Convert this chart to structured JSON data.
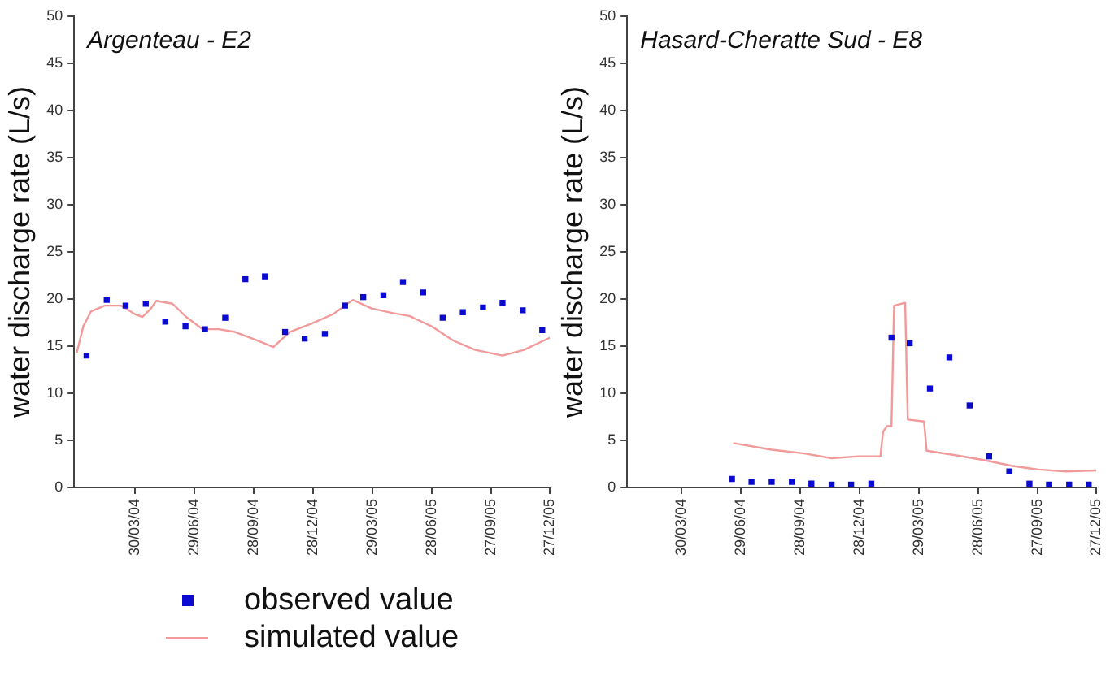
{
  "chart_data": [
    {
      "type": "line",
      "title": "Argenteau - E2",
      "ylabel": "water discharge rate (L/s)",
      "xlim": [
        "2003-12-27",
        "2005-12-27"
      ],
      "xticks": [
        {
          "value": "2004-03-30",
          "label": "30/03/04"
        },
        {
          "value": "2004-06-29",
          "label": "29/06/04"
        },
        {
          "value": "2004-09-28",
          "label": "28/09/04"
        },
        {
          "value": "2004-12-28",
          "label": "28/12/04"
        },
        {
          "value": "2005-03-29",
          "label": "29/03/05"
        },
        {
          "value": "2005-06-28",
          "label": "28/06/05"
        },
        {
          "value": "2005-09-27",
          "label": "27/09/05"
        },
        {
          "value": "2005-12-27",
          "label": "27/12/05"
        }
      ],
      "ylim": [
        0,
        50
      ],
      "yticks": [
        0,
        5,
        10,
        15,
        20,
        25,
        30,
        35,
        40,
        45,
        50
      ],
      "grid": false,
      "legend": "bottom",
      "series": [
        {
          "name": "observed value",
          "type": "scatter",
          "marker": "square",
          "color": "#0a0ad0",
          "x": [
            "2004-01-15",
            "2004-02-15",
            "2004-03-15",
            "2004-04-15",
            "2004-05-15",
            "2004-06-15",
            "2004-07-15",
            "2004-08-15",
            "2004-09-15",
            "2004-10-15",
            "2004-11-15",
            "2004-12-15",
            "2005-01-15",
            "2005-02-15",
            "2005-03-15",
            "2005-04-15",
            "2005-05-15",
            "2005-06-15",
            "2005-07-15",
            "2005-08-15",
            "2005-09-15",
            "2005-10-15",
            "2005-11-15",
            "2005-12-15"
          ],
          "values": [
            14.0,
            19.9,
            19.3,
            19.5,
            17.6,
            17.1,
            16.8,
            18.0,
            22.1,
            22.4,
            16.5,
            15.8,
            16.3,
            19.3,
            20.2,
            20.4,
            21.8,
            20.7,
            18.0,
            18.6,
            19.1,
            19.6,
            18.8,
            16.7
          ]
        },
        {
          "name": "simulated value",
          "type": "line",
          "marker": "none",
          "color": "#f29a9a",
          "x": [
            "2003-12-31",
            "2004-01-10",
            "2004-01-22",
            "2004-02-12",
            "2004-03-08",
            "2004-03-29",
            "2004-04-10",
            "2004-04-23",
            "2004-05-01",
            "2004-05-26",
            "2004-06-16",
            "2004-07-11",
            "2004-08-05",
            "2004-08-30",
            "2004-10-03",
            "2004-10-28",
            "2004-11-22",
            "2004-12-26",
            "2005-01-28",
            "2005-02-27",
            "2005-03-28",
            "2005-04-30",
            "2005-05-25",
            "2005-06-28",
            "2005-07-31",
            "2005-09-03",
            "2005-10-15",
            "2005-11-17",
            "2005-12-27"
          ],
          "values": [
            14.3,
            17.1,
            18.7,
            19.3,
            19.3,
            18.4,
            18.1,
            19.0,
            19.8,
            19.5,
            18.1,
            16.8,
            16.8,
            16.5,
            15.6,
            14.9,
            16.5,
            17.4,
            18.4,
            19.9,
            19.0,
            18.5,
            18.2,
            17.1,
            15.6,
            14.6,
            14.0,
            14.6,
            15.9
          ]
        }
      ]
    },
    {
      "type": "line",
      "title": "Hasard-Cheratte Sud - E8",
      "ylabel": "water discharge rate (L/s)",
      "xlim": [
        "2004-01-06",
        "2005-12-27"
      ],
      "xticks": [
        {
          "value": "2004-03-30",
          "label": "30/03/04"
        },
        {
          "value": "2004-06-29",
          "label": "29/06/04"
        },
        {
          "value": "2004-09-28",
          "label": "28/09/04"
        },
        {
          "value": "2004-12-28",
          "label": "28/12/04"
        },
        {
          "value": "2005-03-29",
          "label": "29/03/05"
        },
        {
          "value": "2005-06-28",
          "label": "28/06/05"
        },
        {
          "value": "2005-09-27",
          "label": "27/09/05"
        },
        {
          "value": "2005-12-27",
          "label": "27/12/05"
        }
      ],
      "ylim": [
        0,
        50
      ],
      "yticks": [
        0,
        5,
        10,
        15,
        20,
        25,
        30,
        35,
        40,
        45,
        50
      ],
      "grid": false,
      "series": [
        {
          "type": "scatter",
          "marker": "square",
          "color": "#0a0ad0",
          "x": [
            "2004-06-15",
            "2004-07-15",
            "2004-08-15",
            "2004-09-15",
            "2004-10-15",
            "2004-11-15",
            "2004-12-15",
            "2005-01-15",
            "2005-02-15",
            "2005-03-15",
            "2005-04-15",
            "2005-05-15",
            "2005-06-15",
            "2005-07-15",
            "2005-08-15",
            "2005-09-15",
            "2005-10-15",
            "2005-11-15",
            "2005-12-15"
          ],
          "values": [
            0.9,
            0.6,
            0.6,
            0.6,
            0.4,
            0.3,
            0.3,
            0.4,
            15.9,
            15.3,
            10.5,
            13.8,
            8.7,
            3.3,
            1.7,
            0.4,
            0.3,
            0.3,
            0.3
          ]
        },
        {
          "type": "line",
          "marker": "none",
          "color": "#f29a9a",
          "x": [
            "2004-06-17",
            "2004-08-15",
            "2004-10-04",
            "2004-11-15",
            "2004-12-27",
            "2005-01-29",
            "2005-02-02",
            "2005-02-08",
            "2005-02-15",
            "2005-02-19",
            "2005-03-08",
            "2005-03-12",
            "2005-04-06",
            "2005-04-10",
            "2005-05-26",
            "2005-07-07",
            "2005-08-18",
            "2005-09-29",
            "2005-11-10",
            "2005-12-27"
          ],
          "values": [
            4.7,
            4.0,
            3.6,
            3.1,
            3.3,
            3.3,
            5.9,
            6.5,
            6.5,
            19.3,
            19.6,
            7.2,
            7.0,
            3.9,
            3.4,
            2.9,
            2.3,
            1.9,
            1.7,
            1.8
          ]
        }
      ]
    }
  ]
}
